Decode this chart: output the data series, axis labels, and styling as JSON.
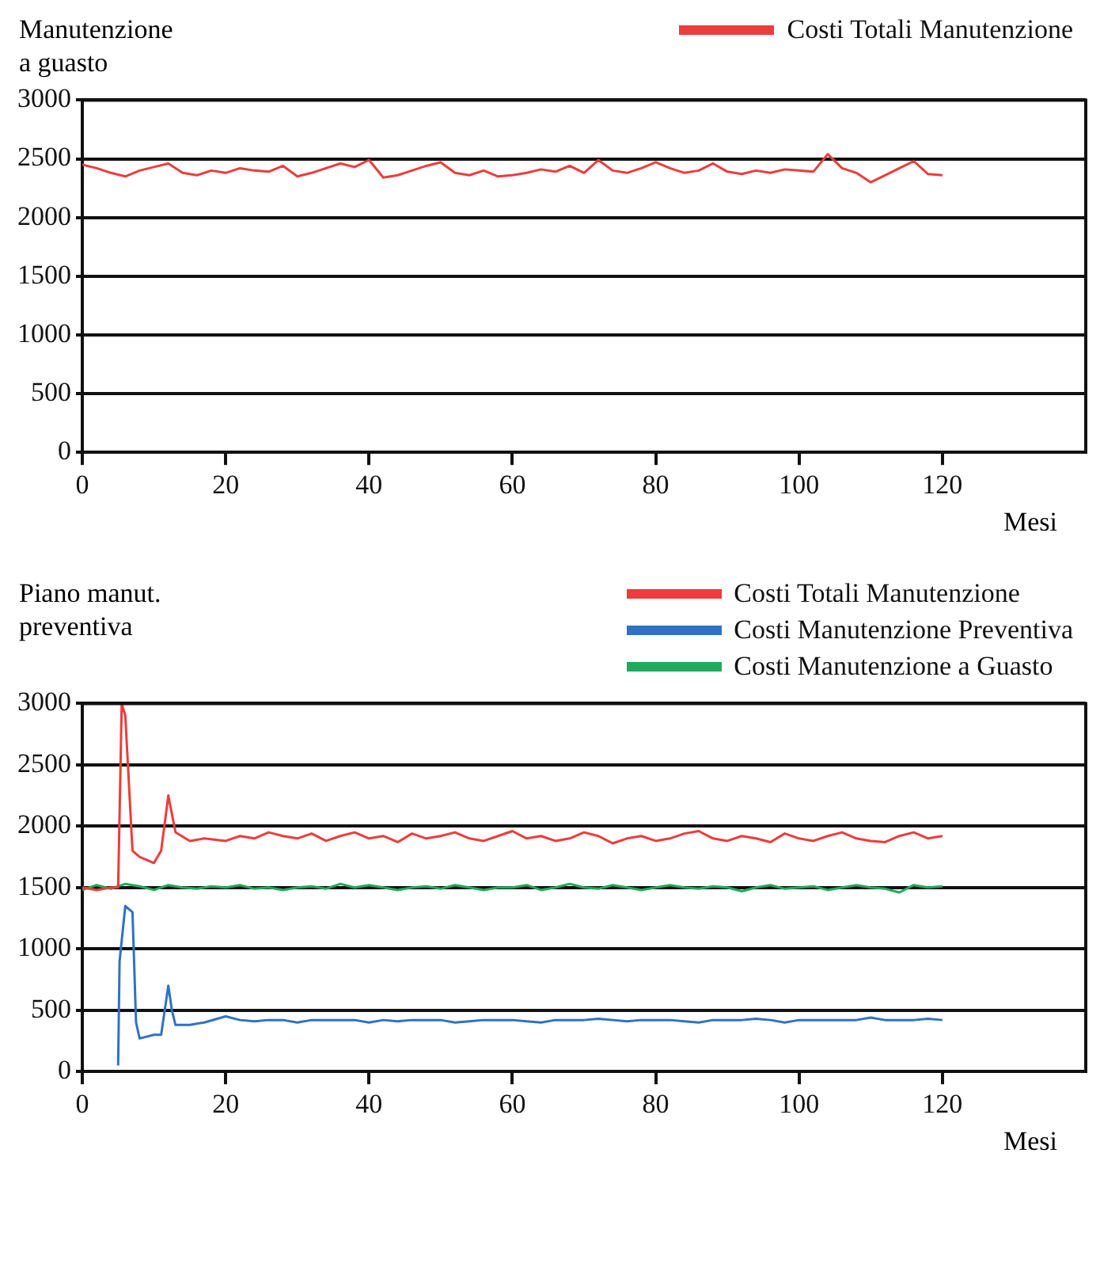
{
  "chart_data": [
    {
      "type": "line",
      "ylabel": "Manutenzione\na guasto",
      "xlabel": "Mesi",
      "xlim": [
        0,
        140
      ],
      "xticks": [
        0,
        20,
        40,
        60,
        80,
        100,
        120
      ],
      "ylim": [
        0,
        3000
      ],
      "yticks": [
        0,
        500,
        1000,
        1500,
        2000,
        2500,
        3000
      ],
      "grid": "y",
      "legend": "top right",
      "marker": "none",
      "line_style": "solid",
      "series": [
        {
          "name": "Costi Totali Manutenzione",
          "color": "#ee3b3b",
          "x": [
            0,
            2,
            4,
            6,
            8,
            10,
            12,
            14,
            16,
            18,
            20,
            22,
            24,
            26,
            28,
            30,
            32,
            34,
            36,
            38,
            40,
            42,
            44,
            46,
            48,
            50,
            52,
            54,
            56,
            58,
            60,
            62,
            64,
            66,
            68,
            70,
            72,
            74,
            76,
            78,
            80,
            82,
            84,
            86,
            88,
            90,
            92,
            94,
            96,
            98,
            100,
            102,
            104,
            106,
            108,
            110,
            112,
            114,
            116,
            118,
            120
          ],
          "values": [
            2450,
            2420,
            2380,
            2350,
            2400,
            2430,
            2460,
            2380,
            2360,
            2400,
            2380,
            2420,
            2400,
            2390,
            2440,
            2350,
            2380,
            2420,
            2460,
            2430,
            2490,
            2340,
            2360,
            2400,
            2440,
            2470,
            2380,
            2360,
            2400,
            2350,
            2360,
            2380,
            2410,
            2390,
            2440,
            2380,
            2490,
            2400,
            2380,
            2420,
            2470,
            2420,
            2380,
            2400,
            2460,
            2390,
            2370,
            2400,
            2380,
            2410,
            2400,
            2390,
            2540,
            2420,
            2380,
            2300,
            2360,
            2420,
            2480,
            2370,
            2360
          ]
        }
      ]
    },
    {
      "type": "line",
      "ylabel": "Piano manut.\npreventiva",
      "xlabel": "Mesi",
      "xlim": [
        0,
        140
      ],
      "xticks": [
        0,
        20,
        40,
        60,
        80,
        100,
        120
      ],
      "ylim": [
        0,
        3000
      ],
      "yticks": [
        0,
        500,
        1000,
        1500,
        2000,
        2500,
        3000
      ],
      "grid": "y",
      "legend": "top right",
      "marker": "none",
      "line_style": "solid",
      "series": [
        {
          "name": "Costi Totali Manutenzione",
          "color": "#ee3b3b",
          "x": [
            0,
            2,
            4,
            5,
            5.5,
            6,
            7,
            8,
            10,
            11,
            12,
            12.5,
            13,
            15,
            17,
            20,
            22,
            24,
            26,
            28,
            30,
            32,
            34,
            36,
            38,
            40,
            42,
            44,
            46,
            48,
            50,
            52,
            54,
            56,
            58,
            60,
            62,
            64,
            66,
            68,
            70,
            72,
            74,
            76,
            78,
            80,
            82,
            84,
            86,
            88,
            90,
            92,
            94,
            96,
            98,
            100,
            102,
            104,
            106,
            108,
            110,
            112,
            114,
            116,
            118,
            120
          ],
          "values": [
            1500,
            1480,
            1500,
            1500,
            3000,
            2900,
            1800,
            1750,
            1700,
            1800,
            2250,
            2100,
            1950,
            1880,
            1900,
            1880,
            1920,
            1900,
            1950,
            1920,
            1900,
            1940,
            1880,
            1920,
            1950,
            1900,
            1920,
            1870,
            1940,
            1900,
            1920,
            1950,
            1900,
            1880,
            1920,
            1960,
            1900,
            1920,
            1880,
            1900,
            1950,
            1920,
            1860,
            1900,
            1920,
            1880,
            1900,
            1940,
            1960,
            1900,
            1880,
            1920,
            1900,
            1870,
            1940,
            1900,
            1880,
            1920,
            1950,
            1900,
            1880,
            1870,
            1920,
            1950,
            1900,
            1920
          ]
        },
        {
          "name": "Costi Manutenzione Preventiva",
          "color": "#2f72c4",
          "x": [
            5,
            5.2,
            6,
            7,
            7.5,
            8,
            10,
            11,
            12,
            12.5,
            13,
            15,
            17,
            20,
            22,
            24,
            26,
            28,
            30,
            32,
            34,
            36,
            38,
            40,
            42,
            44,
            46,
            48,
            50,
            52,
            54,
            56,
            58,
            60,
            62,
            64,
            66,
            68,
            70,
            72,
            74,
            76,
            78,
            80,
            82,
            84,
            86,
            88,
            90,
            92,
            94,
            96,
            98,
            100,
            102,
            104,
            106,
            108,
            110,
            112,
            114,
            116,
            118,
            120
          ],
          "values": [
            50,
            900,
            1350,
            1300,
            400,
            270,
            300,
            300,
            700,
            500,
            380,
            380,
            400,
            450,
            420,
            410,
            420,
            420,
            400,
            420,
            420,
            420,
            420,
            400,
            420,
            410,
            420,
            420,
            420,
            400,
            410,
            420,
            420,
            420,
            410,
            400,
            420,
            420,
            420,
            430,
            420,
            410,
            420,
            420,
            420,
            410,
            400,
            420,
            420,
            420,
            430,
            420,
            400,
            420,
            420,
            420,
            420,
            420,
            440,
            420,
            420,
            420,
            430,
            420
          ]
        },
        {
          "name": "Costi Manutenzione a Guasto",
          "color": "#1faa5c",
          "x": [
            0,
            2,
            4,
            6,
            8,
            10,
            12,
            14,
            16,
            18,
            20,
            22,
            24,
            26,
            28,
            30,
            32,
            34,
            36,
            38,
            40,
            42,
            44,
            46,
            48,
            50,
            52,
            54,
            56,
            58,
            60,
            62,
            64,
            66,
            68,
            70,
            72,
            74,
            76,
            78,
            80,
            82,
            84,
            86,
            88,
            90,
            92,
            94,
            96,
            98,
            100,
            102,
            104,
            106,
            108,
            110,
            112,
            114,
            116,
            118,
            120
          ],
          "values": [
            1480,
            1520,
            1490,
            1530,
            1510,
            1480,
            1520,
            1500,
            1490,
            1510,
            1500,
            1520,
            1490,
            1500,
            1480,
            1500,
            1510,
            1490,
            1530,
            1500,
            1520,
            1500,
            1480,
            1500,
            1510,
            1490,
            1520,
            1500,
            1480,
            1500,
            1500,
            1520,
            1480,
            1500,
            1530,
            1500,
            1490,
            1520,
            1500,
            1480,
            1500,
            1520,
            1500,
            1490,
            1510,
            1500,
            1470,
            1500,
            1520,
            1490,
            1500,
            1510,
            1480,
            1500,
            1520,
            1500,
            1490,
            1460,
            1520,
            1500,
            1510
          ]
        }
      ]
    }
  ]
}
